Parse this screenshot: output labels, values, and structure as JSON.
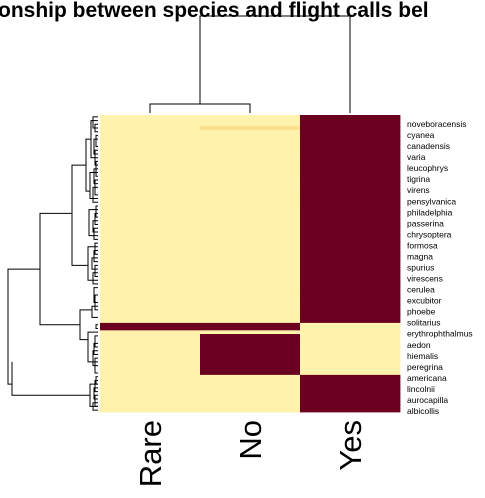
{
  "chart_data": {
    "type": "heatmap",
    "title": "onship between species and flight calls bel",
    "columns": [
      "Rare",
      "No",
      "Yes"
    ],
    "row_labels": [
      "noveboracensis",
      "cyanea",
      "canadensis",
      "varia",
      "leucophrys",
      "tigrina",
      "virens",
      "pensylvanica",
      "philadelphia",
      "passerina",
      "chrysoptera",
      "formosa",
      "magna",
      "spurius",
      "virescens",
      "cerulea",
      "excubitor",
      "phoebe",
      "solitarius",
      "erythrophthalmus",
      "aedon",
      "hiemalis",
      "peregrina",
      "americana",
      "lincolnii",
      "aurocapilla",
      "albicollis"
    ],
    "n_rows": 80,
    "colors": {
      "low": "#fff2ad",
      "mid_low": "#fde08a",
      "mid": "#f6b54a",
      "high": "#6b0020",
      "line": "#000000"
    },
    "color_level_codes": {
      "0": "low",
      "1": "mid_low",
      "2": "mid",
      "3": "high"
    },
    "cells": {
      "Rare": [
        0,
        0,
        0,
        0,
        0,
        0,
        0,
        0,
        0,
        0,
        0,
        0,
        0,
        0,
        0,
        0,
        0,
        0,
        0,
        0,
        0,
        0,
        0,
        0,
        0,
        0,
        0,
        0,
        0,
        0,
        0,
        0,
        0,
        0,
        0,
        0,
        0,
        0,
        0,
        0,
        0,
        0,
        0,
        0,
        0,
        0,
        0,
        0,
        0,
        0,
        0,
        0,
        0,
        0,
        0,
        0,
        3,
        3,
        0,
        0,
        0,
        0,
        0,
        0,
        0,
        0,
        0,
        0,
        0,
        0,
        0,
        0,
        0,
        0,
        0,
        0,
        0,
        0,
        0,
        0
      ],
      "No": [
        0,
        0,
        0,
        1,
        0,
        0,
        0,
        0,
        0,
        0,
        0,
        0,
        0,
        0,
        0,
        0,
        0,
        0,
        0,
        0,
        0,
        0,
        0,
        0,
        0,
        0,
        0,
        0,
        0,
        0,
        0,
        0,
        0,
        0,
        0,
        0,
        0,
        0,
        0,
        0,
        0,
        0,
        0,
        0,
        0,
        0,
        0,
        0,
        0,
        0,
        0,
        0,
        0,
        0,
        0,
        0,
        3,
        3,
        0,
        3,
        3,
        3,
        3,
        3,
        3,
        3,
        3,
        3,
        3,
        3,
        0,
        0,
        0,
        0,
        0,
        0,
        0,
        0,
        0,
        0
      ],
      "Yes": [
        3,
        3,
        3,
        3,
        3,
        3,
        3,
        3,
        3,
        3,
        3,
        3,
        3,
        3,
        3,
        3,
        3,
        3,
        3,
        3,
        3,
        3,
        3,
        3,
        3,
        3,
        3,
        3,
        3,
        3,
        3,
        3,
        3,
        3,
        3,
        3,
        3,
        3,
        3,
        3,
        3,
        3,
        3,
        3,
        3,
        3,
        3,
        3,
        3,
        3,
        3,
        3,
        3,
        3,
        3,
        3,
        0,
        0,
        0,
        0,
        0,
        0,
        0,
        0,
        0,
        0,
        0,
        0,
        0,
        0,
        3,
        3,
        3,
        3,
        3,
        3,
        3,
        3,
        3,
        3
      ]
    },
    "column_dendrogram": {
      "merges": [
        [
          "Rare",
          "No"
        ],
        [
          "Rare+No",
          "Yes"
        ]
      ]
    }
  }
}
